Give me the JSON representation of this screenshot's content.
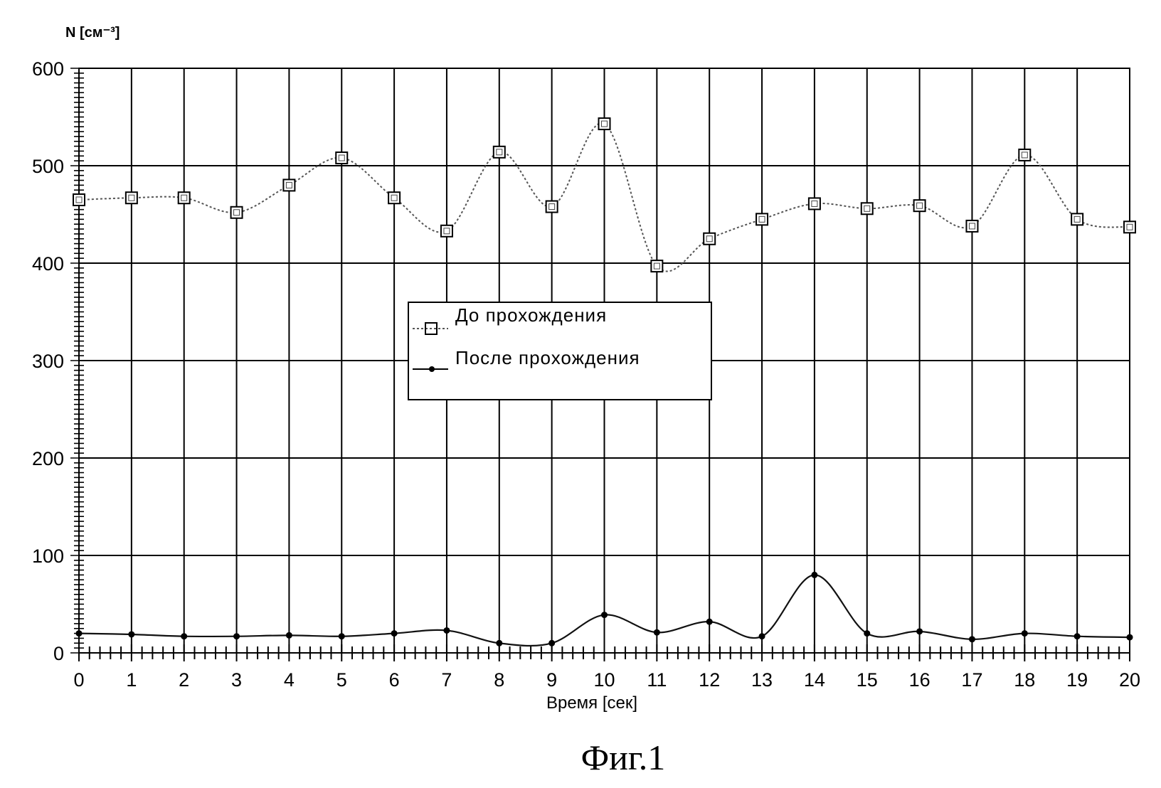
{
  "chart_data": {
    "type": "line",
    "title": "",
    "xlabel": "Время [сек]",
    "ylabel": "N [см⁻³]",
    "caption": "Фиг.1",
    "xlim": [
      0,
      20
    ],
    "ylim": [
      0,
      600
    ],
    "x": [
      0,
      1,
      2,
      3,
      4,
      5,
      6,
      7,
      8,
      9,
      10,
      11,
      12,
      13,
      14,
      15,
      16,
      17,
      18,
      19,
      20
    ],
    "x_ticks": [
      "0",
      "1",
      "2",
      "3",
      "4",
      "5",
      "6",
      "7",
      "8",
      "9",
      "10",
      "11",
      "12",
      "13",
      "14",
      "15",
      "16",
      "17",
      "18",
      "19",
      "20"
    ],
    "y_ticks": [
      "0",
      "100",
      "200",
      "300",
      "400",
      "500",
      "600"
    ],
    "grid": true,
    "legend_position": "center",
    "series": [
      {
        "name": "До прохождения",
        "marker": "square",
        "line_style": "dotted",
        "values": [
          465,
          467,
          467,
          452,
          480,
          508,
          467,
          433,
          514,
          458,
          543,
          397,
          425,
          445,
          461,
          456,
          459,
          438,
          511,
          445,
          437
        ]
      },
      {
        "name": "После прохождения",
        "marker": "dot",
        "line_style": "solid",
        "values": [
          20,
          19,
          17,
          17,
          18,
          17,
          20,
          23,
          10,
          10,
          39,
          21,
          32,
          17,
          80,
          20,
          22,
          14,
          20,
          17,
          16
        ]
      }
    ]
  }
}
